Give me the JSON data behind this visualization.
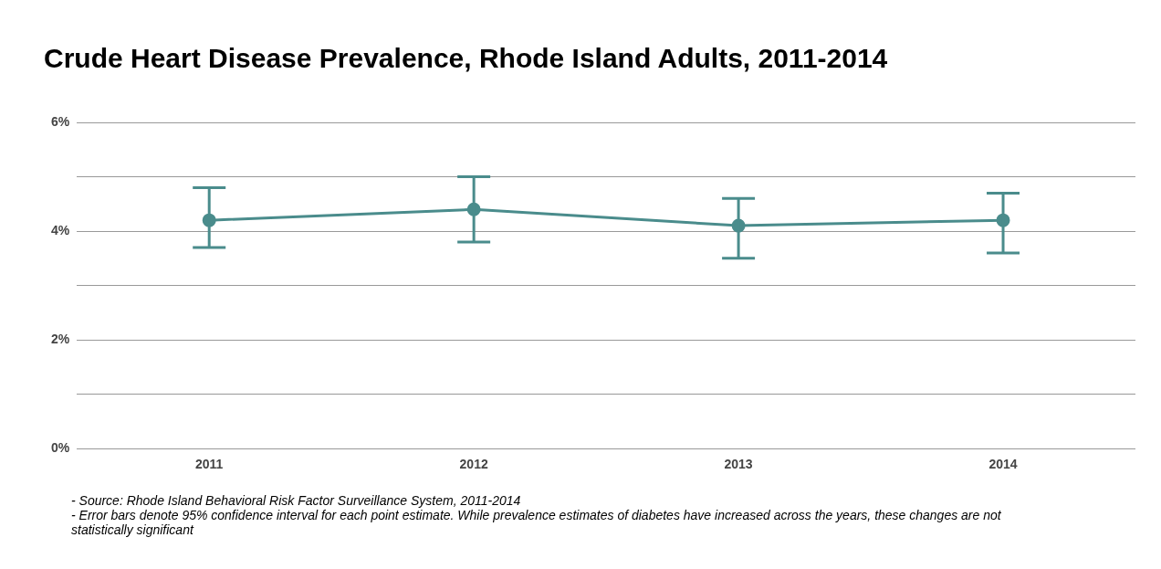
{
  "chart_data": {
    "type": "line",
    "title": "Crude Heart Disease Prevalence, Rhode Island Adults, 2011-2014",
    "categories": [
      "2011",
      "2012",
      "2013",
      "2014"
    ],
    "series": [
      {
        "color": "#4a8c8c",
        "values": [
          4.2,
          4.4,
          4.1,
          4.2
        ],
        "errors": [
          [
            3.7,
            4.8
          ],
          [
            3.8,
            5.0
          ],
          [
            3.5,
            4.6
          ],
          [
            3.6,
            4.7
          ]
        ]
      }
    ],
    "ylim": [
      0,
      6
    ],
    "yticks": [
      {
        "value": 0,
        "label": "0%"
      },
      {
        "value": 1,
        "label": null
      },
      {
        "value": 2,
        "label": "2%"
      },
      {
        "value": 3,
        "label": null
      },
      {
        "value": 4,
        "label": "4%"
      },
      {
        "value": 5,
        "label": null
      },
      {
        "value": 6,
        "label": "6%"
      }
    ],
    "grid": "y",
    "legend": false,
    "marker": "circle",
    "line_style": "solid",
    "annotations": [
      "- Source: Rhode Island Behavioral Risk Factor Surveillance System, 2011-2014",
      "- Error bars denote 95% confidence interval for each point estimate. While prevalence estimates of diabetes have increased across the years, these changes are not statistically significant"
    ]
  }
}
